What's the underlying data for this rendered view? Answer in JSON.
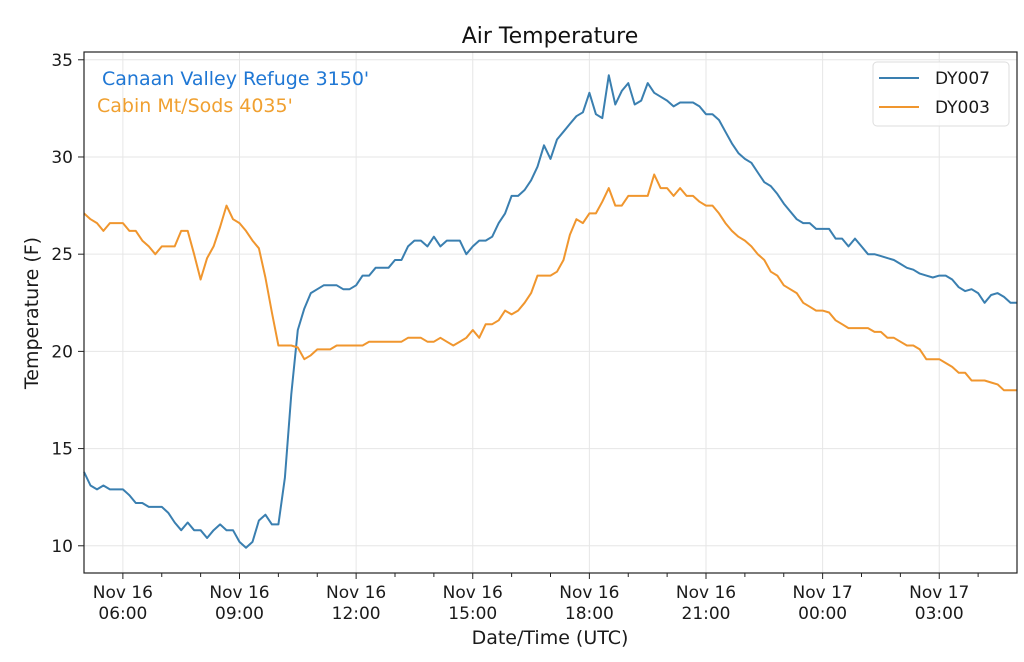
{
  "chart_data": {
    "type": "line",
    "title": "Air Temperature",
    "xlabel": "Date/Time (UTC)",
    "ylabel": "Temperature (F)",
    "xlim_hours_from_nov16_0500": [
      0,
      24
    ],
    "ylim": [
      8.6,
      35.4
    ],
    "grid": true,
    "legend_placement": "top-right",
    "yticks": [
      10,
      15,
      20,
      25,
      30,
      35
    ],
    "xticks": [
      {
        "hour": 1,
        "line1": "Nov 16",
        "line2": "06:00"
      },
      {
        "hour": 4,
        "line1": "Nov 16",
        "line2": "09:00"
      },
      {
        "hour": 7,
        "line1": "Nov 16",
        "line2": "12:00"
      },
      {
        "hour": 10,
        "line1": "Nov 16",
        "line2": "15:00"
      },
      {
        "hour": 13,
        "line1": "Nov 16",
        "line2": "18:00"
      },
      {
        "hour": 16,
        "line1": "Nov 16",
        "line2": "21:00"
      },
      {
        "hour": 19,
        "line1": "Nov 17",
        "line2": "00:00"
      },
      {
        "hour": 22,
        "line1": "Nov 17",
        "line2": "03:00"
      }
    ],
    "x_step_minutes": 10,
    "annotations": [
      {
        "text": "Canaan Valley Refuge 3150'",
        "color": "#1f77d4"
      },
      {
        "text": "Cabin Mt/Sods 4035'",
        "color": "#f0a030"
      }
    ],
    "series": [
      {
        "name": "DY007",
        "color": "#3a7fb0",
        "values": [
          13.8,
          13.1,
          12.9,
          13.1,
          12.9,
          12.9,
          12.9,
          12.6,
          12.2,
          12.2,
          12.0,
          12.0,
          12.0,
          11.7,
          11.2,
          10.8,
          11.2,
          10.8,
          10.8,
          10.4,
          10.8,
          11.1,
          10.8,
          10.8,
          10.2,
          9.9,
          10.2,
          11.3,
          11.6,
          11.1,
          11.1,
          13.5,
          17.8,
          21.1,
          22.2,
          23.0,
          23.2,
          23.4,
          23.4,
          23.4,
          23.2,
          23.2,
          23.4,
          23.9,
          23.9,
          24.3,
          24.3,
          24.3,
          24.7,
          24.7,
          25.4,
          25.7,
          25.7,
          25.4,
          25.9,
          25.4,
          25.7,
          25.7,
          25.7,
          25.0,
          25.4,
          25.7,
          25.7,
          25.9,
          26.6,
          27.1,
          28.0,
          28.0,
          28.3,
          28.8,
          29.5,
          30.6,
          29.9,
          30.9,
          31.3,
          31.7,
          32.1,
          32.3,
          33.3,
          32.2,
          32.0,
          34.2,
          32.7,
          33.4,
          33.8,
          32.7,
          32.9,
          33.8,
          33.3,
          33.1,
          32.9,
          32.6,
          32.8,
          32.8,
          32.8,
          32.6,
          32.2,
          32.2,
          31.9,
          31.3,
          30.7,
          30.2,
          29.9,
          29.7,
          29.2,
          28.7,
          28.5,
          28.1,
          27.6,
          27.2,
          26.8,
          26.6,
          26.6,
          26.3,
          26.3,
          26.3,
          25.8,
          25.8,
          25.4,
          25.8,
          25.4,
          25.0,
          25.0,
          24.9,
          24.8,
          24.7,
          24.5,
          24.3,
          24.2,
          24.0,
          23.9,
          23.8,
          23.9,
          23.9,
          23.7,
          23.3,
          23.1,
          23.2,
          23.0,
          22.5,
          22.9,
          23.0,
          22.8,
          22.5,
          22.5
        ]
      },
      {
        "name": "DY003",
        "color": "#f0962e",
        "values": [
          27.1,
          26.8,
          26.6,
          26.2,
          26.6,
          26.6,
          26.6,
          26.2,
          26.2,
          25.7,
          25.4,
          25.0,
          25.4,
          25.4,
          25.4,
          26.2,
          26.2,
          25.0,
          23.7,
          24.8,
          25.4,
          26.4,
          27.5,
          26.8,
          26.6,
          26.2,
          25.7,
          25.3,
          23.8,
          22.0,
          20.3,
          20.3,
          20.3,
          20.2,
          19.6,
          19.8,
          20.1,
          20.1,
          20.1,
          20.3,
          20.3,
          20.3,
          20.3,
          20.3,
          20.5,
          20.5,
          20.5,
          20.5,
          20.5,
          20.5,
          20.7,
          20.7,
          20.7,
          20.5,
          20.5,
          20.7,
          20.5,
          20.3,
          20.5,
          20.7,
          21.1,
          20.7,
          21.4,
          21.4,
          21.6,
          22.1,
          21.9,
          22.1,
          22.5,
          23.0,
          23.9,
          23.9,
          23.9,
          24.1,
          24.7,
          26.0,
          26.8,
          26.6,
          27.1,
          27.1,
          27.7,
          28.4,
          27.5,
          27.5,
          28.0,
          28.0,
          28.0,
          28.0,
          29.1,
          28.4,
          28.4,
          28.0,
          28.4,
          28.0,
          28.0,
          27.7,
          27.5,
          27.5,
          27.1,
          26.6,
          26.2,
          25.9,
          25.7,
          25.4,
          25.0,
          24.7,
          24.1,
          23.9,
          23.4,
          23.2,
          23.0,
          22.5,
          22.3,
          22.1,
          22.1,
          22.0,
          21.6,
          21.4,
          21.2,
          21.2,
          21.2,
          21.2,
          21.0,
          21.0,
          20.7,
          20.7,
          20.5,
          20.3,
          20.3,
          20.1,
          19.6,
          19.6,
          19.6,
          19.4,
          19.2,
          18.9,
          18.9,
          18.5,
          18.5,
          18.5,
          18.4,
          18.3,
          18.0,
          18.0,
          18.0
        ]
      }
    ]
  }
}
